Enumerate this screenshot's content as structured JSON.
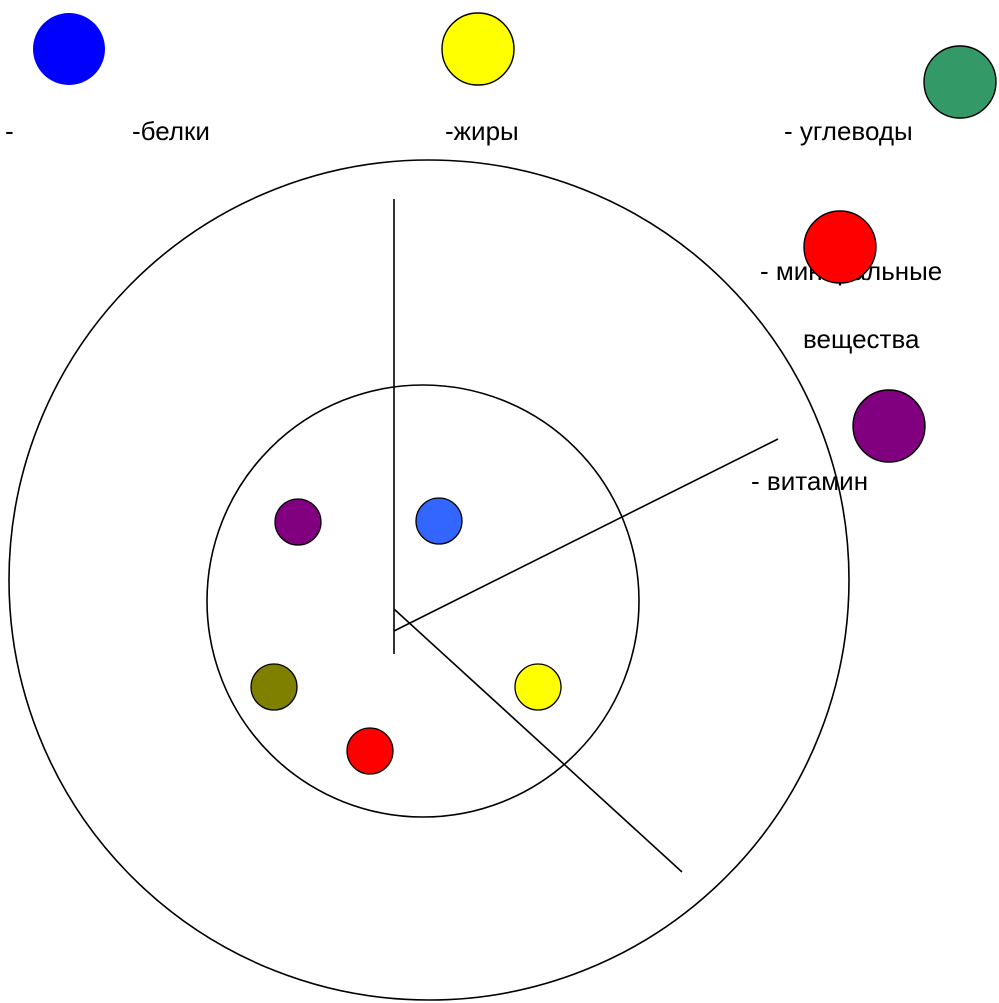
{
  "legend": {
    "stray_dash": "-",
    "items": [
      {
        "label": "-белки",
        "color": "#0000ff",
        "meaning": "proteins"
      },
      {
        "label": "-жиры",
        "color": "#ffff00",
        "meaning": "fats"
      },
      {
        "label": "- углеводы",
        "color": "#339966",
        "meaning": "carbohydrates"
      },
      {
        "label": "- минеральные",
        "label_line2": "вещества",
        "color": "#ff0000",
        "meaning": "minerals"
      },
      {
        "label": "- витамин",
        "color": "#800080",
        "meaning": "vitamins"
      }
    ]
  },
  "diagram": {
    "outer_circle": {
      "stroke": "#000000"
    },
    "inner_circle": {
      "stroke": "#000000"
    },
    "dots": [
      {
        "name": "dot-vitamin",
        "color": "#800080"
      },
      {
        "name": "dot-protein",
        "color": "#3366ff"
      },
      {
        "name": "dot-fat",
        "color": "#ffff00"
      },
      {
        "name": "dot-olive",
        "color": "#808000"
      },
      {
        "name": "dot-mineral",
        "color": "#ff0000"
      }
    ]
  }
}
